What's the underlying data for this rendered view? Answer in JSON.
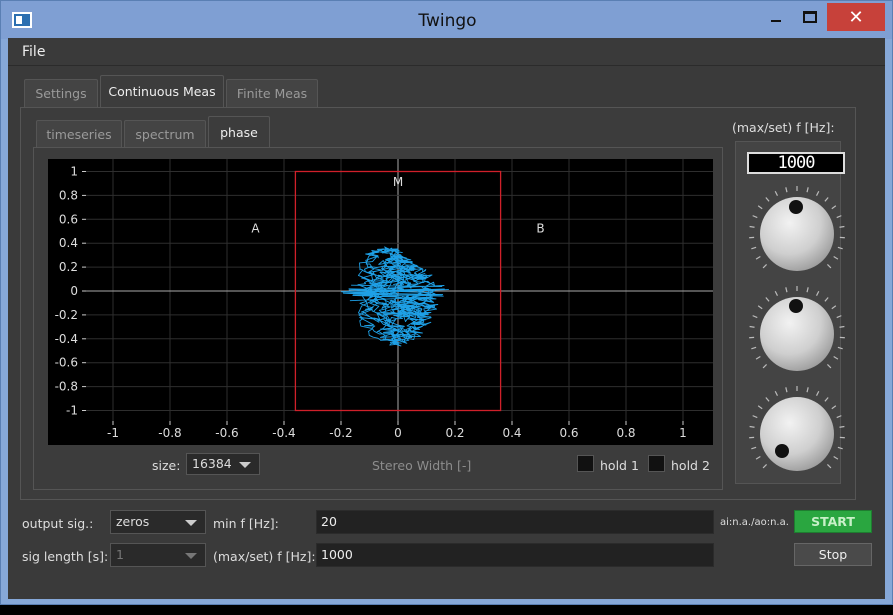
{
  "window": {
    "title": "Twingo",
    "close_glyph": "✕",
    "icon": "app-window-icon"
  },
  "menu": {
    "file": "File"
  },
  "main_tabs": [
    {
      "label": "Settings",
      "active": false
    },
    {
      "label": "Continuous Meas",
      "active": true
    },
    {
      "label": "Finite Meas",
      "active": false
    }
  ],
  "view_tabs": [
    {
      "label": "timeseries",
      "active": false
    },
    {
      "label": "spectrum",
      "active": false
    },
    {
      "label": "phase",
      "active": true
    }
  ],
  "plot": {
    "region_labels": {
      "a": "A",
      "b": "B",
      "m": "M"
    },
    "x_ticks": [
      "-1",
      "-0.8",
      "-0.6",
      "-0.4",
      "-0.2",
      "0",
      "0.2",
      "0.4",
      "0.6",
      "0.8",
      "1"
    ],
    "y_ticks": [
      "1",
      "0.8",
      "0.6",
      "0.4",
      "0.2",
      "0",
      "-0.2",
      "-0.4",
      "-0.6",
      "-0.8",
      "-1"
    ],
    "trace_color": "#1ea0e6",
    "box_color": "#d0202a",
    "box_x_range": [
      -0.36,
      0.36
    ],
    "box_y_range": [
      -1,
      1
    ]
  },
  "plot_controls": {
    "size_label": "size:",
    "size_value": "16384",
    "center_label": "Stereo Width [-]",
    "hold1": "hold 1",
    "hold2": "hold 2"
  },
  "knob_panel": {
    "title": "(max/set) f [Hz]:",
    "lcd_value": "1000"
  },
  "form": {
    "output_sig_label": "output sig.:",
    "output_sig_value": "zeros",
    "sig_length_label": "sig length [s]:",
    "sig_length_value": "1",
    "min_f_label": "min f [Hz]:",
    "min_f_value": "20",
    "max_f_label": "(max/set) f [Hz]:",
    "max_f_value": "1000",
    "status": "ai:n.a./ao:n.a.",
    "start_label": "START",
    "stop_label": "Stop",
    "start_color": "#2aa640"
  }
}
